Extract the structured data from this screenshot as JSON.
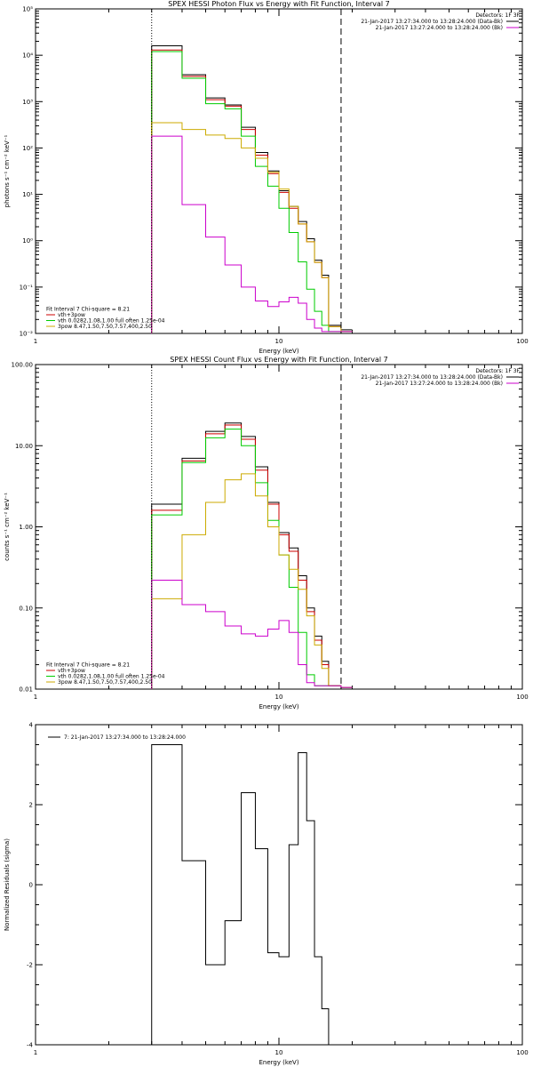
{
  "chart_data": [
    {
      "type": "line",
      "title": "SPEX HESSI Photon Flux vs Energy with Fit Function, Interval 7",
      "xlabel": "Energy (keV)",
      "ylabel": "photons s⁻¹ cm⁻² keV⁻¹",
      "xscale": "log",
      "yscale": "log",
      "xlim": [
        1,
        100
      ],
      "ylim": [
        0.01,
        100000
      ],
      "x_ticks": [
        {
          "v": 1,
          "t": "1"
        },
        {
          "v": 10,
          "t": "10"
        },
        {
          "v": 100,
          "t": "100"
        }
      ],
      "y_ticks": [
        {
          "v": 0.01,
          "t": "10⁻²"
        },
        {
          "v": 0.1,
          "t": "10⁻¹"
        },
        {
          "v": 1,
          "t": "10⁰"
        },
        {
          "v": 10,
          "t": "10¹"
        },
        {
          "v": 100,
          "t": "10²"
        },
        {
          "v": 1000,
          "t": "10³"
        },
        {
          "v": 10000,
          "t": "10⁴"
        },
        {
          "v": 100000,
          "t": "10⁵"
        }
      ],
      "vlines": [
        {
          "x": 3.0,
          "style": "dotted"
        },
        {
          "x": 18.0,
          "style": "dashed"
        }
      ],
      "detectors_label": "Detectors: 1F 3F",
      "legend_top": [
        {
          "text": "21-Jan-2017 13:27:34.000 to 13:28:24.000 (Data-Bk)",
          "color": "#000000"
        },
        {
          "text": "21-Jan-2017 13:27:24.000 to 13:28:24.000 (Bk)",
          "color": "#cc00cc"
        }
      ],
      "legend_bottom": [
        {
          "text": "Fit Interval 7   Chi-square = 8.21",
          "color": null
        },
        {
          "text": "vth+3pow",
          "color": "#cc0000"
        },
        {
          "text": "vth 0.0282,1.08,1.00  full often 1.25e-04",
          "color": "#00cc00"
        },
        {
          "text": "3pow 8.47,1.50,7.50,7.57,400,2.50",
          "color": "#ccaa00"
        }
      ],
      "edges": [
        3.0,
        4.0,
        5.0,
        6.0,
        7.0,
        8.0,
        9.0,
        10.0,
        11.0,
        12.0,
        13.0,
        14.0,
        15.0,
        16.0,
        18.0,
        20.0
      ],
      "series": [
        {
          "color": "#000000",
          "values": [
            16000,
            3800,
            1200,
            850,
            280,
            80,
            32,
            12,
            5.5,
            2.6,
            1.1,
            0.38,
            0.18,
            0.015,
            0.012
          ]
        },
        {
          "color": "#cc0000",
          "values": [
            13000,
            3500,
            1100,
            800,
            250,
            70,
            28,
            11,
            5.0,
            2.3,
            0.95,
            0.34,
            0.16,
            0.014,
            0.011
          ]
        },
        {
          "color": "#00cc00",
          "values": [
            12000,
            3200,
            900,
            700,
            180,
            40,
            15,
            5,
            1.5,
            0.35,
            0.09,
            0.03,
            0.015,
            0.011,
            0.011
          ]
        },
        {
          "color": "#ccaa00",
          "values": [
            350,
            250,
            190,
            160,
            100,
            60,
            30,
            13,
            5.5,
            2.3,
            0.95,
            0.34,
            0.16,
            0.014,
            0.011
          ]
        },
        {
          "color": "#cc00cc",
          "values": [
            180,
            6,
            1.2,
            0.3,
            0.1,
            0.05,
            0.038,
            0.048,
            0.06,
            0.045,
            0.02,
            0.013,
            0.011,
            0.011,
            0.011
          ]
        }
      ]
    },
    {
      "type": "line",
      "title": "SPEX HESSI Count Flux vs Energy with Fit Function, Interval 7",
      "xlabel": "Energy (keV)",
      "ylabel": "counts s⁻¹ cm⁻² keV⁻¹",
      "xscale": "log",
      "yscale": "log",
      "xlim": [
        1,
        100
      ],
      "ylim": [
        0.01,
        100
      ],
      "x_ticks": [
        {
          "v": 1,
          "t": "1"
        },
        {
          "v": 10,
          "t": "10"
        },
        {
          "v": 100,
          "t": "100"
        }
      ],
      "y_ticks": [
        {
          "v": 0.01,
          "t": "0.01"
        },
        {
          "v": 0.1,
          "t": "0.10"
        },
        {
          "v": 1,
          "t": "1.00"
        },
        {
          "v": 10,
          "t": "10.00"
        },
        {
          "v": 100,
          "t": "100.00"
        }
      ],
      "vlines": [
        {
          "x": 3.0,
          "style": "dotted"
        },
        {
          "x": 18.0,
          "style": "dashed"
        }
      ],
      "detectors_label": "Detectors: 1F 3F",
      "legend_top": [
        {
          "text": "21-Jan-2017 13:27:34.000 to 13:28:24.000 (Data-Bk)",
          "color": "#000000"
        },
        {
          "text": "21-Jan-2017 13:27:24.000 to 13:28:24.000 (Bk)",
          "color": "#cc00cc"
        }
      ],
      "legend_bottom": [
        {
          "text": "Fit Interval 7   Chi-square = 8.21",
          "color": null
        },
        {
          "text": "vth+3pow",
          "color": "#cc0000"
        },
        {
          "text": "vth 0.0282,1.08,1.00  full often 1.25e-04",
          "color": "#00cc00"
        },
        {
          "text": "3pow 8.47,1.50,7.50,7.57,400,2.50",
          "color": "#ccaa00"
        }
      ],
      "edges": [
        3.0,
        4.0,
        5.0,
        6.0,
        7.0,
        8.0,
        9.0,
        10.0,
        11.0,
        12.0,
        13.0,
        14.0,
        15.0,
        16.0,
        18.0,
        20.0
      ],
      "series": [
        {
          "color": "#000000",
          "values": [
            1.9,
            7.0,
            15.0,
            19.0,
            13.0,
            5.5,
            2.0,
            0.85,
            0.55,
            0.25,
            0.1,
            0.045,
            0.022,
            0.011,
            0.0105
          ]
        },
        {
          "color": "#cc0000",
          "values": [
            1.6,
            6.5,
            14.0,
            18.0,
            12.0,
            5.0,
            1.9,
            0.8,
            0.5,
            0.22,
            0.09,
            0.04,
            0.02,
            0.011,
            0.0105
          ]
        },
        {
          "color": "#00cc00",
          "values": [
            1.4,
            6.2,
            12.5,
            16.0,
            10.0,
            3.5,
            1.2,
            0.45,
            0.18,
            0.05,
            0.015,
            0.011,
            0.011,
            0.011,
            0.0105
          ]
        },
        {
          "color": "#ccaa00",
          "values": [
            0.13,
            0.8,
            2.0,
            3.8,
            4.5,
            2.4,
            1.0,
            0.45,
            0.3,
            0.17,
            0.08,
            0.035,
            0.018,
            0.011,
            0.0105
          ]
        },
        {
          "color": "#cc00cc",
          "values": [
            0.22,
            0.11,
            0.09,
            0.06,
            0.048,
            0.045,
            0.055,
            0.07,
            0.05,
            0.02,
            0.012,
            0.011,
            0.011,
            0.011,
            0.0105
          ]
        }
      ]
    },
    {
      "type": "line",
      "title": "",
      "xlabel": "Energy (keV)",
      "ylabel": "Normalized Residuals (sigma)",
      "xscale": "log",
      "yscale": "linear",
      "xlim": [
        1,
        100
      ],
      "ylim": [
        -4,
        4
      ],
      "x_ticks": [
        {
          "v": 1,
          "t": "1"
        },
        {
          "v": 10,
          "t": "10"
        },
        {
          "v": 100,
          "t": "100"
        }
      ],
      "y_ticks": [
        {
          "v": -4,
          "t": "-4"
        },
        {
          "v": -2,
          "t": "-2"
        },
        {
          "v": 0,
          "t": "0"
        },
        {
          "v": 2,
          "t": "2"
        },
        {
          "v": 4,
          "t": "4"
        }
      ],
      "vlines": [],
      "detectors_label": "",
      "legend_top": [
        {
          "text": "7: 21-Jan-2017 13:27:34.000 to 13:28:24.000",
          "color": "#000000"
        }
      ],
      "legend_bottom": [],
      "edges": [
        3.0,
        4.0,
        5.0,
        6.0,
        7.0,
        8.0,
        9.0,
        10.0,
        11.0,
        12.0,
        13.0,
        14.0,
        15.0,
        16.0,
        18.0
      ],
      "series": [
        {
          "color": "#000000",
          "values": [
            3.5,
            0.6,
            -2.0,
            -0.9,
            2.3,
            0.9,
            -1.7,
            -1.8,
            1.0,
            3.3,
            1.6,
            -1.8,
            -3.1,
            -4.0
          ]
        }
      ]
    }
  ]
}
